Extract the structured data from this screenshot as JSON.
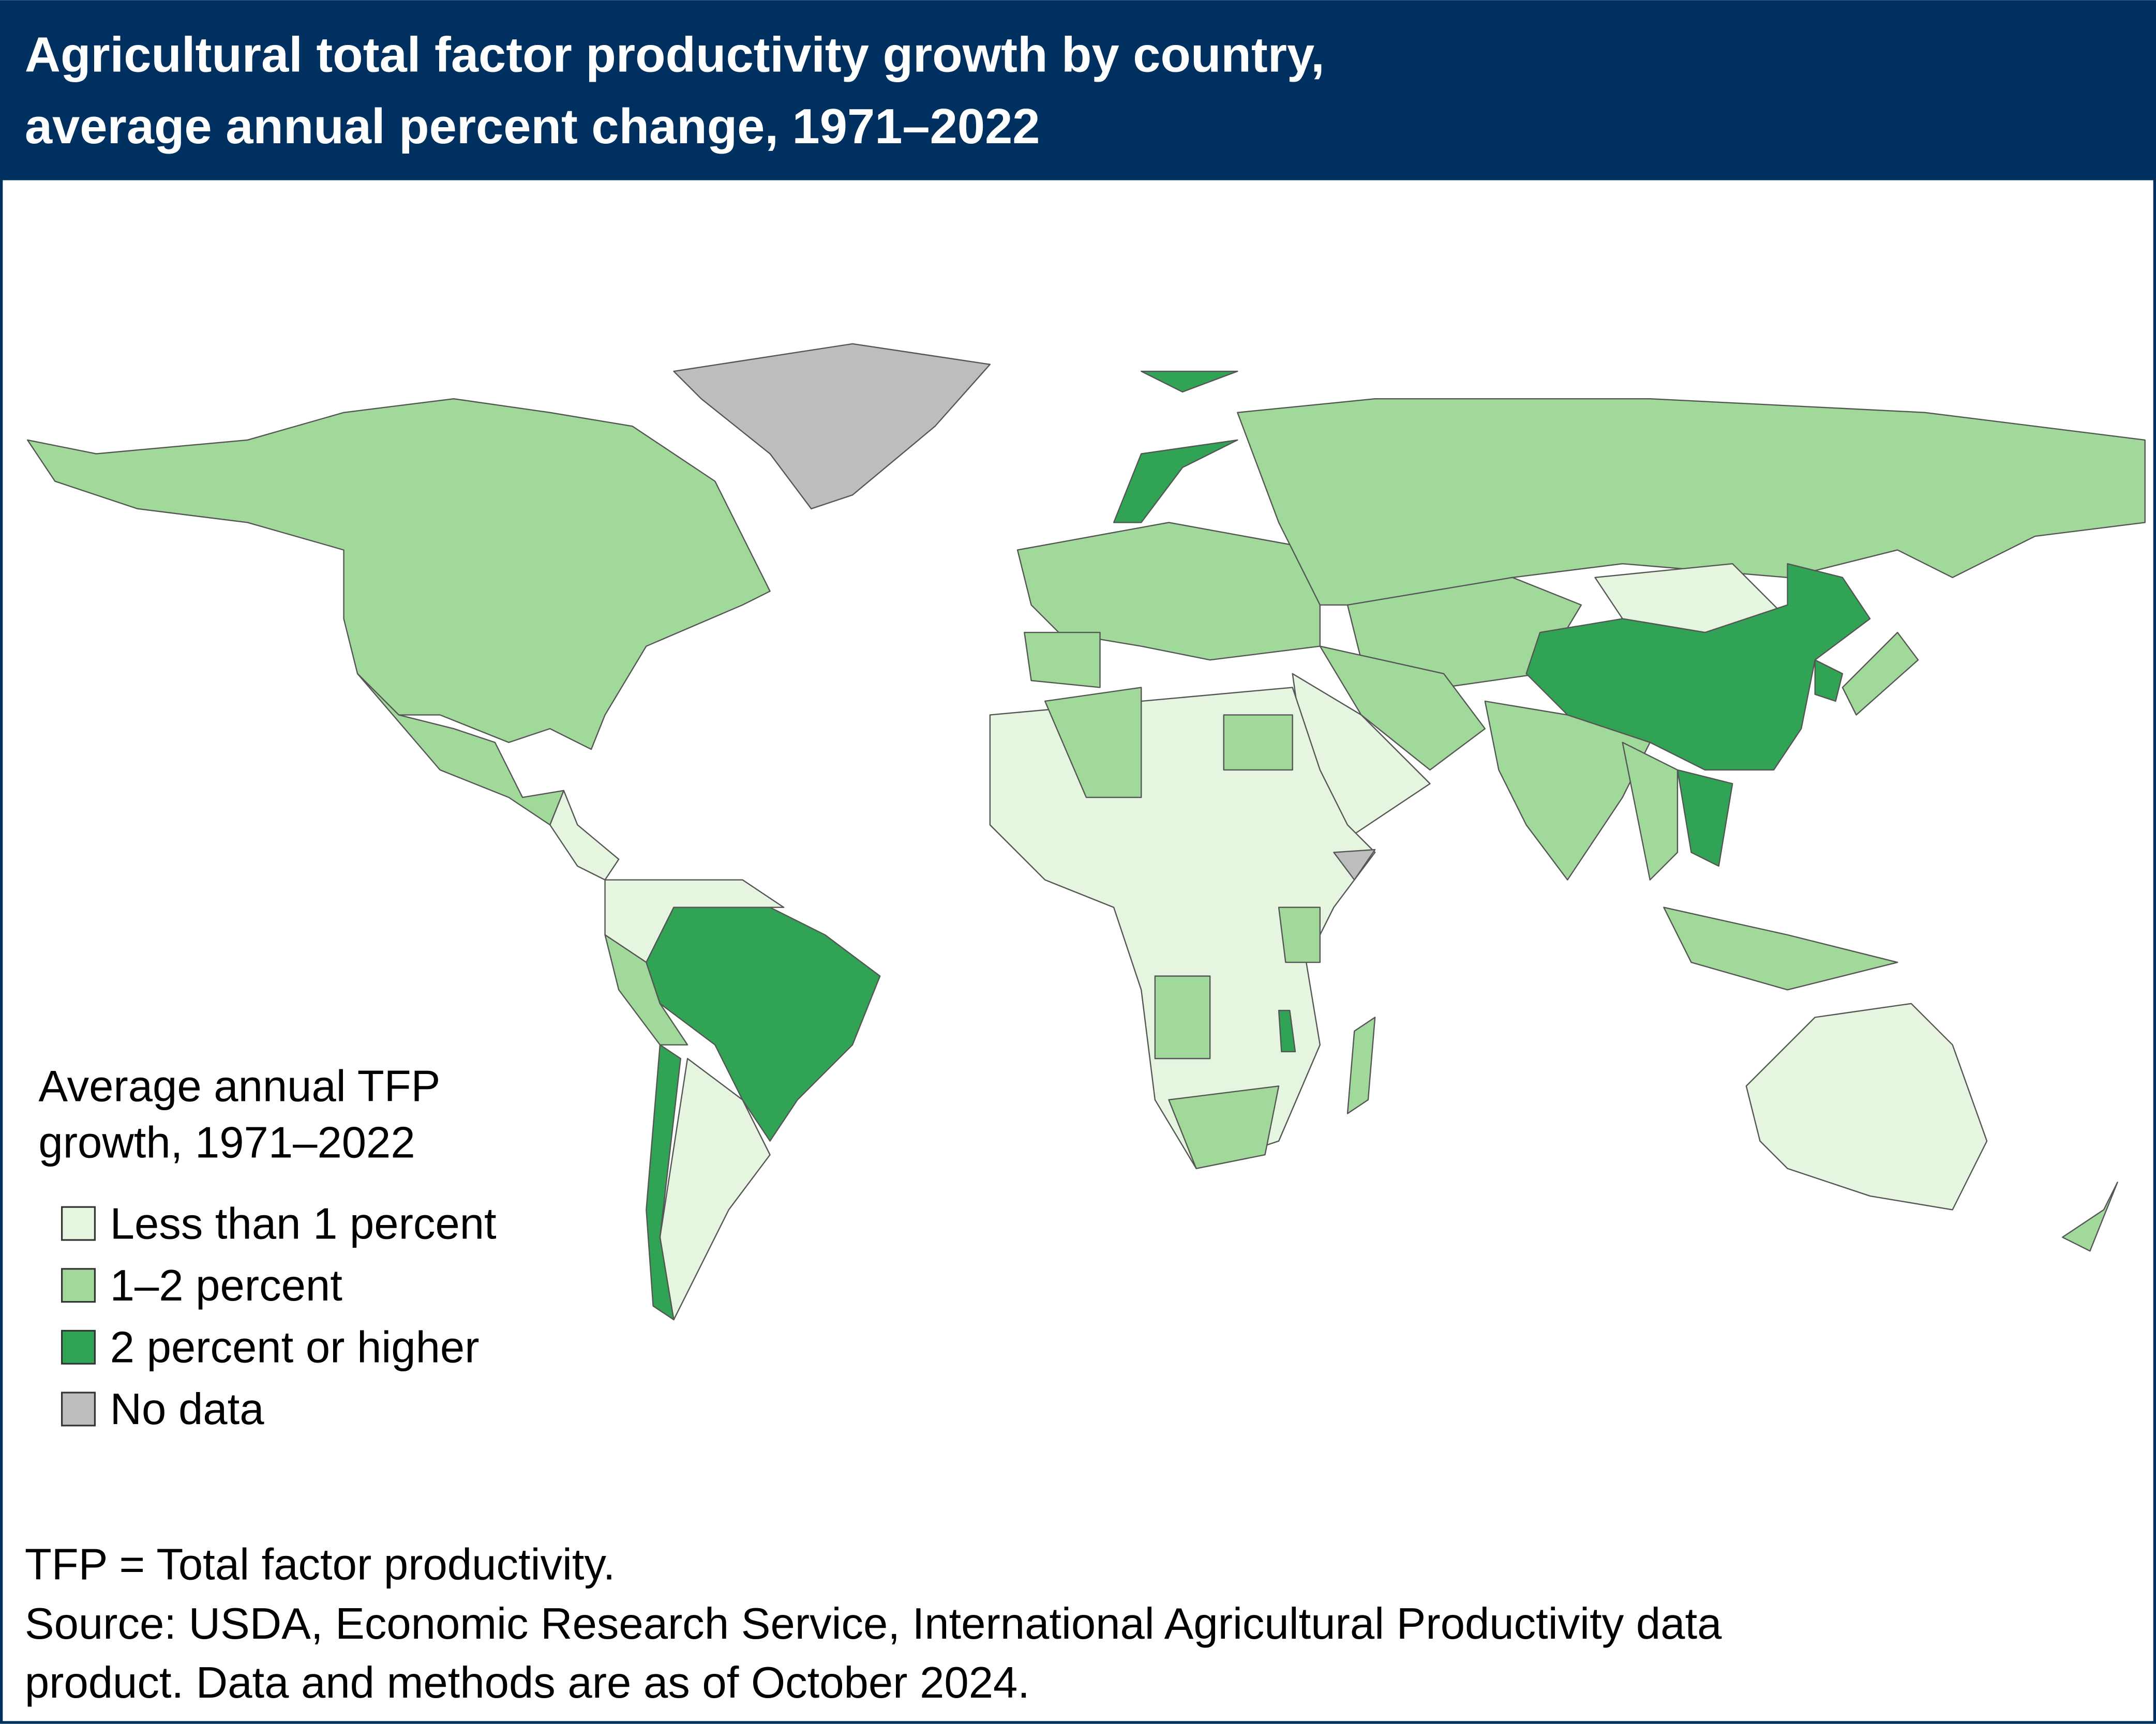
{
  "header": {
    "title": [
      "Agricultural total factor productivity growth by country,",
      "average annual percent change, 1971–2022"
    ]
  },
  "legend": {
    "title": [
      "Average annual TFP",
      "growth, 1971–2022"
    ],
    "items": [
      {
        "label": "Less than 1 percent",
        "color": "#e5f5e0"
      },
      {
        "label": "1–2 percent",
        "color": "#a1d99b"
      },
      {
        "label": "2 percent or higher",
        "color": "#31a354"
      },
      {
        "label": "No data",
        "color": "#bdbdbd"
      }
    ]
  },
  "notes": [
    "TFP = Total factor productivity.",
    "Source: USDA, Economic Research Service, International Agricultural Productivity data",
    "product. Data and methods are as of October 2024."
  ]
}
